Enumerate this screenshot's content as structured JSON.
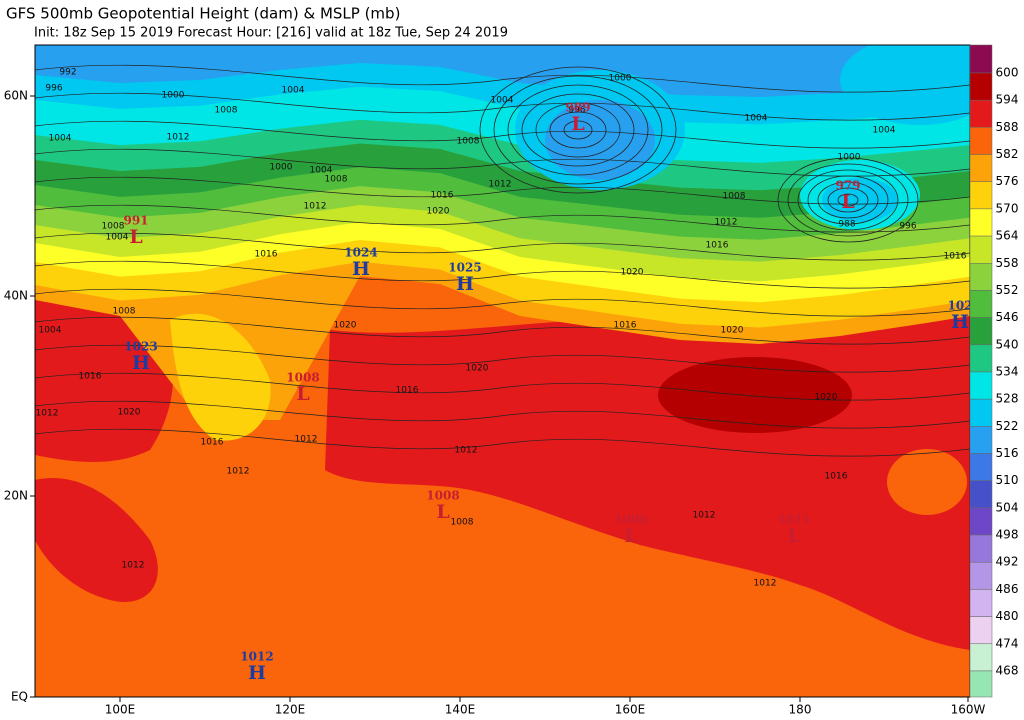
{
  "header": {
    "title": "GFS 500mb Geopotential Height (dam) & MSLP (mb)",
    "subtitle": "Init: 18z Sep 15 2019   Forecast Hour: [216]   valid at 18z Tue, Sep 24 2019"
  },
  "latitude_labels": [
    "60N",
    "40N",
    "20N",
    "EQ"
  ],
  "longitude_labels": [
    "100E",
    "120E",
    "140E",
    "160E",
    "180",
    "160W"
  ],
  "colorbar": {
    "labels": [
      600,
      594,
      588,
      582,
      576,
      570,
      564,
      558,
      552,
      546,
      540,
      534,
      528,
      522,
      516,
      510,
      504,
      498,
      492,
      486,
      480,
      474,
      468
    ],
    "colors": [
      "#8c0a50",
      "#b40000",
      "#e31a1c",
      "#fa640a",
      "#fda30a",
      "#fdd20a",
      "#ffff28",
      "#c8e628",
      "#8cd23c",
      "#50be3c",
      "#28a03c",
      "#1ec882",
      "#00e6e6",
      "#00c8f0",
      "#28a0f0",
      "#3c78e6",
      "#4650c8",
      "#6e46c8",
      "#9678dc",
      "#b496e6",
      "#d2b4f0",
      "#ecd2f0",
      "#c8f0d2",
      "#96e6b4"
    ]
  },
  "pressure_centers": [
    {
      "type": "L",
      "value": "989"
    },
    {
      "type": "L",
      "value": "979"
    },
    {
      "type": "L",
      "value": "991"
    },
    {
      "type": "H",
      "value": "1024"
    },
    {
      "type": "H",
      "value": "1025"
    },
    {
      "type": "H",
      "value": "1023"
    },
    {
      "type": "L",
      "value": "1008"
    },
    {
      "type": "H",
      "value": "102"
    },
    {
      "type": "L",
      "value": "1008"
    },
    {
      "type": "L",
      "value": "1006"
    },
    {
      "type": "L",
      "value": "1011"
    },
    {
      "type": "H",
      "value": "1012"
    }
  ],
  "isobar_labels": [
    "992",
    "996",
    "1000",
    "1004",
    "1008",
    "1012",
    "1004",
    "1004",
    "1000",
    "996",
    "1004",
    "1004",
    "1000",
    "1008",
    "1000",
    "1004",
    "1008",
    "1012",
    "1016",
    "1020",
    "1012",
    "1008",
    "1004",
    "1016",
    "1008",
    "1012",
    "1016",
    "988",
    "996",
    "1016",
    "1020",
    "1016",
    "1020",
    "1020",
    "1020",
    "1016",
    "1020",
    "1008",
    "1004",
    "1016",
    "1012",
    "1020",
    "1016",
    "1012",
    "1012",
    "1012",
    "1016",
    "1012",
    "1008",
    "1012",
    "1012"
  ]
}
